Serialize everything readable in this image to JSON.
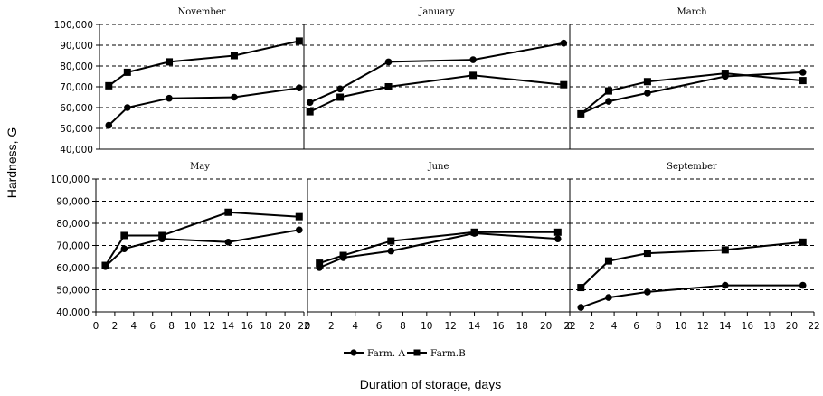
{
  "chart_data": {
    "type": "line",
    "ylabel": "Hardness, G",
    "xlabel": "Duration of storage, days",
    "ylim": [
      40000,
      100000
    ],
    "yticks": [
      "40,000",
      "50,000",
      "60,000",
      "70,000",
      "80,000",
      "90,000",
      "100,000"
    ],
    "xlim": [
      0,
      22
    ],
    "xticks": [
      "0",
      "2",
      "4",
      "6",
      "8",
      "10",
      "12",
      "14",
      "16",
      "18",
      "20",
      "22"
    ],
    "grid": "horizontal-dashed",
    "legend_position": "bottom-center",
    "legend": [
      {
        "name": "Farm. A",
        "marker": "circle"
      },
      {
        "name": "Farm.B",
        "marker": "square"
      }
    ],
    "panels": [
      {
        "title": "November",
        "series": [
          {
            "name": "Farm. A",
            "x": [
              1,
              3,
              7.5,
              14.5,
              21.5
            ],
            "y": [
              51500,
              60000,
              64500,
              65000,
              69500
            ]
          },
          {
            "name": "Farm.B",
            "x": [
              1,
              3,
              7.5,
              14.5,
              21.5
            ],
            "y": [
              70500,
              77000,
              82000,
              85000,
              92000
            ]
          }
        ]
      },
      {
        "title": "January",
        "series": [
          {
            "name": "Farm. A",
            "x": [
              0.5,
              3,
              7,
              14,
              21.5
            ],
            "y": [
              62500,
              69000,
              82000,
              83000,
              91000
            ]
          },
          {
            "name": "Farm.B",
            "x": [
              0.5,
              3,
              7,
              14,
              21.5
            ],
            "y": [
              58000,
              65000,
              70000,
              75500,
              71000
            ]
          }
        ]
      },
      {
        "title": "March",
        "series": [
          {
            "name": "Farm. A",
            "x": [
              1,
              3.5,
              7,
              14,
              21
            ],
            "y": [
              57000,
              63000,
              67000,
              75000,
              77000
            ]
          },
          {
            "name": "Farm.B",
            "x": [
              1,
              3.5,
              7,
              14,
              21
            ],
            "y": [
              57000,
              68000,
              72500,
              76500,
              73000
            ]
          }
        ]
      },
      {
        "title": "May",
        "series": [
          {
            "name": "Farm. A",
            "x": [
              1,
              3,
              7,
              14,
              21.5
            ],
            "y": [
              60500,
              68500,
              73000,
              71500,
              77000
            ]
          },
          {
            "name": "Farm.B",
            "x": [
              1,
              3,
              7,
              14,
              21.5
            ],
            "y": [
              61000,
              74500,
              74500,
              85000,
              83000
            ]
          }
        ]
      },
      {
        "title": "June",
        "series": [
          {
            "name": "Farm. A",
            "x": [
              1,
              3,
              7,
              14,
              21
            ],
            "y": [
              60000,
              64500,
              67500,
              75500,
              73000
            ]
          },
          {
            "name": "Farm.B",
            "x": [
              1,
              3,
              7,
              14,
              21
            ],
            "y": [
              62000,
              65500,
              72000,
              76000,
              76000
            ]
          }
        ]
      },
      {
        "title": "September",
        "series": [
          {
            "name": "Farm. A",
            "x": [
              1,
              3.5,
              7,
              14,
              21
            ],
            "y": [
              42000,
              46500,
              49000,
              52000,
              52000
            ]
          },
          {
            "name": "Farm.B",
            "x": [
              1,
              3.5,
              7,
              14,
              21
            ],
            "y": [
              51000,
              63000,
              66500,
              68000,
              71500
            ]
          }
        ]
      }
    ]
  }
}
